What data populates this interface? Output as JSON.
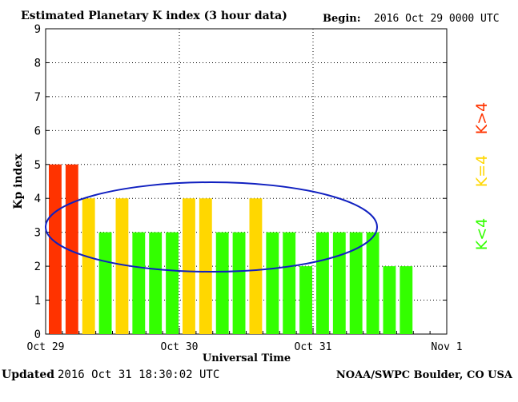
{
  "header": {
    "title": "Estimated Planetary K index (3 hour data)",
    "begin_label": "Begin:",
    "begin_value": "2016 Oct 29 0000 UTC"
  },
  "footer": {
    "updated_label": "Updated",
    "updated_value": "2016 Oct 31 18:30:02 UTC",
    "source": "NOAA/SWPC Boulder, CO USA"
  },
  "legend": {
    "storm": "K>4",
    "active": "K=4",
    "quiet": "K<4"
  },
  "colors": {
    "storm": "#ff3300",
    "active": "#ffd700",
    "quiet": "#33ff00",
    "ellipse": "#1020c0",
    "grid": "#000000"
  },
  "chart_data": {
    "type": "bar",
    "title": "Estimated Planetary K index (3 hour data)",
    "xlabel": "Universal Time",
    "ylabel": "Kp index",
    "ylim": [
      0,
      9
    ],
    "yticks": [
      "0",
      "1",
      "2",
      "3",
      "4",
      "5",
      "6",
      "7",
      "8",
      "9"
    ],
    "xticks": [
      "Oct 29",
      "Oct 30",
      "Oct 31",
      "Nov 1"
    ],
    "interval_hours": 3,
    "values": [
      5,
      5,
      4,
      3,
      4,
      3,
      3,
      3,
      4,
      4,
      3,
      3,
      4,
      3,
      3,
      2,
      3,
      3,
      3,
      3,
      2,
      2
    ],
    "grid": true,
    "annotation": "ellipse around Oct 29 06:00 - Oct 31 09:00"
  }
}
